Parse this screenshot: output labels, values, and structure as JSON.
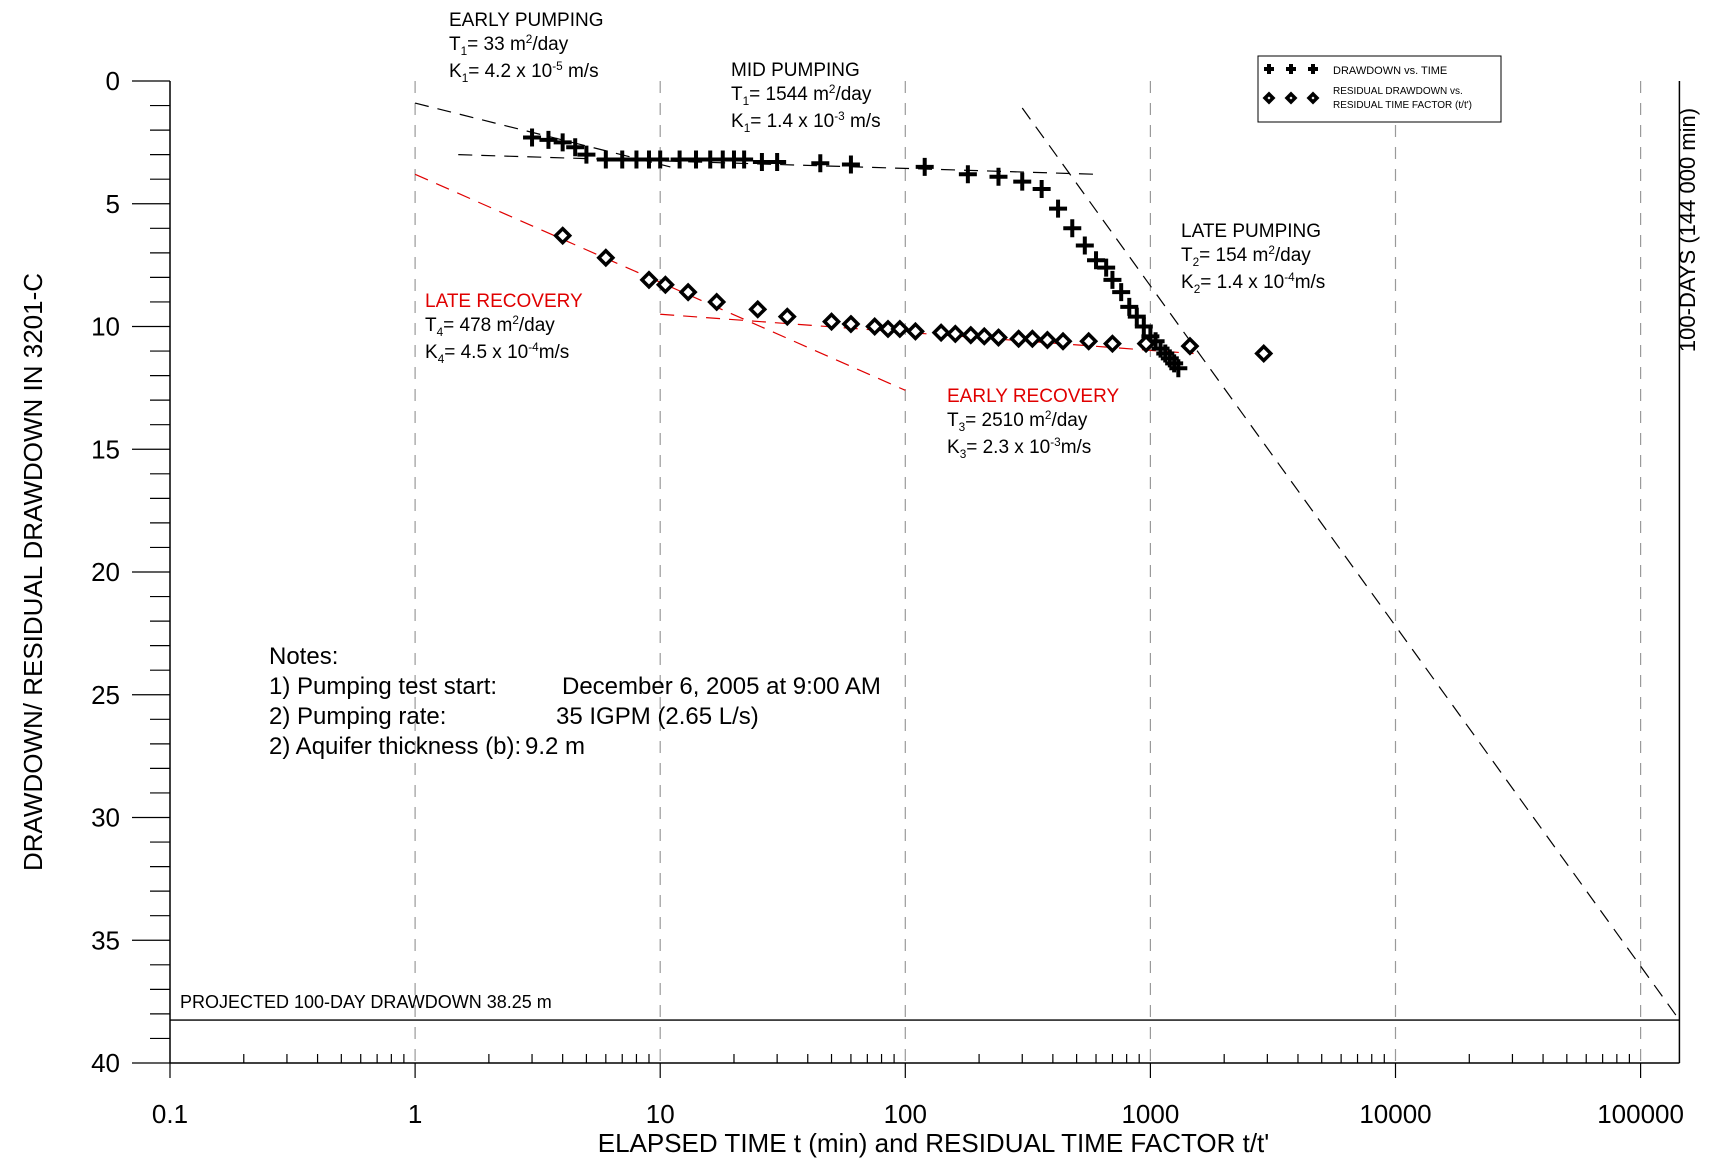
{
  "chart_data": {
    "type": "scatter",
    "x_scale": "log",
    "y_inverted": true,
    "xlim": [
      0.1,
      144000
    ],
    "ylim": [
      0,
      40
    ],
    "xlabel": "ELAPSED TIME t (min) and RESIDUAL TIME FACTOR t/t'",
    "ylabel": "DRAWDOWN/ RESIDUAL DRAWDOWN IN 3201-C",
    "x_ticks": [
      "0.1",
      "1",
      "10",
      "100",
      "1000",
      "10000",
      "100000"
    ],
    "y_ticks": [
      "0",
      "5",
      "10",
      "15",
      "20",
      "25",
      "30",
      "35",
      "40"
    ],
    "series": [
      {
        "name": "DRAWDOWN vs. TIME",
        "marker": "plus",
        "points": [
          [
            3,
            2.3
          ],
          [
            3.5,
            2.4
          ],
          [
            4,
            2.5
          ],
          [
            4.5,
            2.7
          ],
          [
            5,
            3.0
          ],
          [
            6,
            3.2
          ],
          [
            7,
            3.2
          ],
          [
            8,
            3.2
          ],
          [
            9,
            3.2
          ],
          [
            10,
            3.2
          ],
          [
            12,
            3.2
          ],
          [
            14,
            3.2
          ],
          [
            16,
            3.2
          ],
          [
            18,
            3.2
          ],
          [
            20,
            3.2
          ],
          [
            22,
            3.2
          ],
          [
            26,
            3.3
          ],
          [
            30,
            3.3
          ],
          [
            45,
            3.35
          ],
          [
            60,
            3.4
          ],
          [
            120,
            3.5
          ],
          [
            180,
            3.8
          ],
          [
            240,
            3.9
          ],
          [
            300,
            4.1
          ],
          [
            360,
            4.4
          ],
          [
            420,
            5.2
          ],
          [
            480,
            6.0
          ],
          [
            540,
            6.7
          ],
          [
            600,
            7.3
          ],
          [
            660,
            7.6
          ],
          [
            700,
            8.1
          ],
          [
            760,
            8.6
          ],
          [
            820,
            9.2
          ],
          [
            880,
            9.6
          ],
          [
            940,
            10.0
          ],
          [
            1000,
            10.4
          ],
          [
            1050,
            10.6
          ],
          [
            1100,
            10.9
          ],
          [
            1150,
            11.1
          ],
          [
            1200,
            11.3
          ],
          [
            1250,
            11.5
          ],
          [
            1300,
            11.7
          ]
        ]
      },
      {
        "name": "RESIDUAL DRAWDOWN vs. RESIDUAL TIME FACTOR (t/t')",
        "marker": "diamond",
        "points": [
          [
            4,
            6.3
          ],
          [
            6,
            7.2
          ],
          [
            9,
            8.1
          ],
          [
            10.5,
            8.3
          ],
          [
            13,
            8.6
          ],
          [
            17,
            9.0
          ],
          [
            25,
            9.3
          ],
          [
            33,
            9.6
          ],
          [
            50,
            9.8
          ],
          [
            60,
            9.9
          ],
          [
            75,
            10.0
          ],
          [
            85,
            10.1
          ],
          [
            95,
            10.1
          ],
          [
            110,
            10.2
          ],
          [
            140,
            10.25
          ],
          [
            160,
            10.3
          ],
          [
            185,
            10.35
          ],
          [
            210,
            10.4
          ],
          [
            240,
            10.45
          ],
          [
            290,
            10.5
          ],
          [
            330,
            10.5
          ],
          [
            380,
            10.55
          ],
          [
            440,
            10.6
          ],
          [
            560,
            10.6
          ],
          [
            700,
            10.7
          ],
          [
            960,
            10.7
          ],
          [
            1450,
            10.8
          ],
          [
            2900,
            11.1
          ]
        ]
      }
    ],
    "legend_position": "top-right",
    "legend": [
      {
        "label": "DRAWDOWN vs. TIME"
      },
      {
        "label_lines": [
          "RESIDUAL DRAWDOWN vs.",
          "RESIDUAL TIME FACTOR (t/t')"
        ]
      }
    ],
    "fit_lines": [
      {
        "color": "#000000",
        "from": [
          1,
          0.9
        ],
        "to": [
          11,
          3.5
        ]
      },
      {
        "color": "#000000",
        "from": [
          1.5,
          3.0
        ],
        "to": [
          600,
          3.8
        ]
      },
      {
        "color": "#000000",
        "from": [
          300,
          1.1
        ],
        "to": [
          144000,
          38.25
        ]
      },
      {
        "color": "#e00000",
        "from": [
          1,
          3.8
        ],
        "to": [
          100,
          12.6
        ]
      },
      {
        "color": "#e00000",
        "from": [
          10,
          9.5
        ],
        "to": [
          1500,
          11.1
        ]
      }
    ],
    "vertical_gridlines_x": [
      1,
      10,
      100,
      1000,
      10000,
      100000
    ],
    "projection": {
      "label": "PROJECTED 100-DAY DRAWDOWN 38.25 m",
      "y": 38.25
    },
    "end_line": {
      "label": "100-DAYS (144 000 min)",
      "x": 144000
    },
    "annotations": {
      "early_pumping": {
        "color": "#000000",
        "title": "EARLY PUMPING",
        "t_line": [
          "T",
          "1",
          "= 33 m",
          "2",
          "/day"
        ],
        "k_line": [
          "K",
          "1",
          "= 4.2 x 10",
          "-5",
          " m/s"
        ]
      },
      "mid_pumping": {
        "color": "#000000",
        "title": "MID PUMPING",
        "t_line": [
          "T",
          "1",
          "= 1544 m",
          "2",
          "/day"
        ],
        "k_line": [
          "K",
          "1",
          "= 1.4 x 10",
          "-3",
          " m/s"
        ]
      },
      "late_pumping": {
        "color": "#000000",
        "title": "LATE PUMPING",
        "t_line": [
          "T",
          "2",
          "= 154 m",
          "2",
          "/day"
        ],
        "k_line": [
          "K",
          "2",
          "= 1.4 x 10",
          "-4",
          "m/s"
        ]
      },
      "late_recovery": {
        "color": "#e00000",
        "title": "LATE RECOVERY",
        "t_line": [
          "T",
          "4",
          "= 478 m",
          "2",
          "/day"
        ],
        "k_line": [
          "K",
          "4",
          "= 4.5 x 10",
          "-4",
          "m/s"
        ]
      },
      "early_recovery": {
        "color": "#e00000",
        "title": "EARLY RECOVERY",
        "t_line": [
          "T",
          "3",
          "= 2510 m",
          "2",
          "/day"
        ],
        "k_line": [
          "K",
          "3",
          "= 2.3 x 10",
          "-3",
          "m/s"
        ]
      }
    },
    "notes": {
      "title": "Notes:",
      "items": [
        {
          "label": "1) Pumping test start:",
          "value": "December 6, 2005 at 9:00 AM"
        },
        {
          "label": "2) Pumping rate:",
          "value": "35 IGPM (2.65 L/s)"
        },
        {
          "label": "2) Aquifer thickness (b):",
          "value": "9.2 m"
        }
      ]
    }
  }
}
